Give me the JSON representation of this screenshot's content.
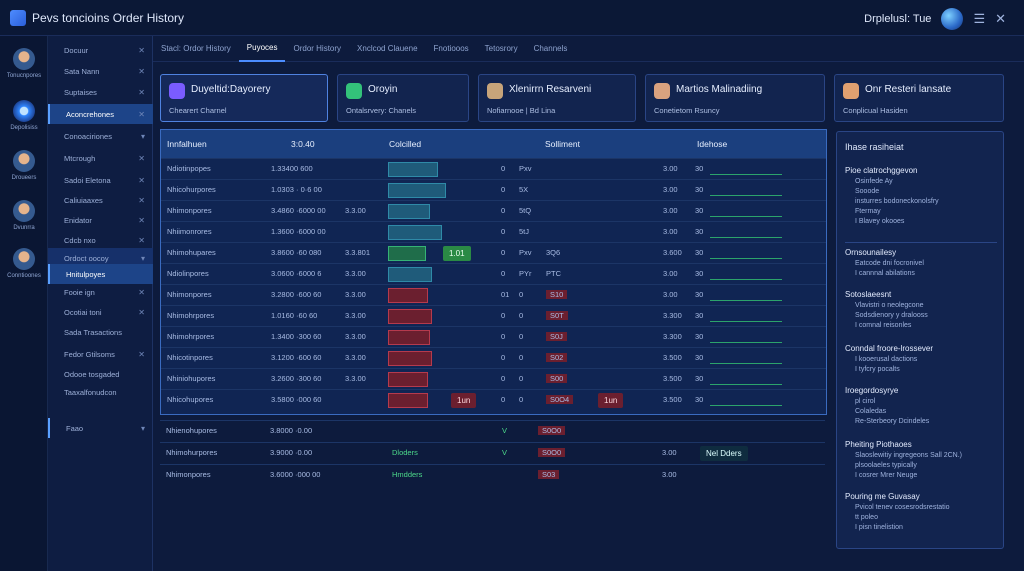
{
  "app": {
    "title": "Pevs toncioins Order History",
    "user": "Drplelusl: Tue"
  },
  "rail": [
    {
      "label": "Tonucnpores"
    },
    {
      "label": "Depolisiss"
    },
    {
      "label": "Droueers"
    },
    {
      "label": "Dvunrra"
    },
    {
      "label": "Conntioones"
    }
  ],
  "sidebar": {
    "items": [
      {
        "label": "Docuur",
        "close": "✕"
      },
      {
        "label": "Sata Nann",
        "close": "✕"
      },
      {
        "label": "Suptaises",
        "close": "✕"
      },
      {
        "label": "Aconcrehones",
        "close": "✕"
      },
      {
        "label": "Conoaciriones",
        "close": "▾"
      },
      {
        "label": "Mtcrough",
        "close": "✕"
      },
      {
        "label": "Sadoi Eletona",
        "close": "✕"
      },
      {
        "label": "Caliuiaaxes",
        "close": "✕"
      },
      {
        "label": "Enidator",
        "close": "✕"
      },
      {
        "label": "Cdcb nxo",
        "close": "✕"
      },
      {
        "label": "Ordoct oocoy",
        "close": "▾"
      },
      {
        "label": "Hnitulpoyes",
        "close": ""
      },
      {
        "label": "Fooie ign",
        "close": "✕"
      },
      {
        "label": "Ocotiai toni",
        "close": "✕"
      },
      {
        "label": "Sada Trasactions",
        "close": ""
      },
      {
        "label": "Fedor Gtilsoms",
        "close": "✕"
      },
      {
        "label": "Odooe tosgaded",
        "close": ""
      },
      {
        "label": "Taaxalfonudcon",
        "close": ""
      },
      {
        "label": "Faao",
        "close": "▾"
      }
    ]
  },
  "tabs": [
    "Stacl: Ordor History",
    "Puyoces",
    "Ordor History",
    "Xnclcod Clauene",
    "Fnotiooos",
    "Tetosrory",
    "Channels"
  ],
  "cards": [
    {
      "title": "Duyeltid:Dayorery",
      "sub": "Chearert Charnel",
      "icon_color": "#7a5cff"
    },
    {
      "title": "Oroyin",
      "sub": "Ontalsrvery: Chanels",
      "icon_color": "#33c27a"
    },
    {
      "title": "Xlenirrn Resarveni",
      "sub": "Nofiarnooe | Bd Lina",
      "icon_color": "#c7a47a"
    },
    {
      "title": "Martios Malinadiing",
      "sub": "Conetietom Rsuncy",
      "icon_color": "#d9a27f"
    },
    {
      "title": "Onr Resteri lansate",
      "sub": "Conplicual Hasiden",
      "icon_color": "#e0a070"
    }
  ],
  "table": {
    "headers": [
      "Innfalhuen",
      "3:0.40",
      "Colcilled",
      "Solliment",
      "Idehose"
    ],
    "rows": [
      {
        "name": "Ndiotinpopes",
        "amount": "1.33400 600",
        "extra": "",
        "col2": "0",
        "col3": "Pxv",
        "col4": "",
        "v1": "3.00",
        "v2": "30",
        "bar": "teal",
        "badge": "",
        "side_badge": ""
      },
      {
        "name": "Nhicohurpores",
        "amount": "1.0303 · 0·6 00",
        "extra": "",
        "col2": "0",
        "col3": "5X",
        "col4": "",
        "v1": "3.00",
        "v2": "30",
        "bar": "teal",
        "badge": "",
        "side_badge": ""
      },
      {
        "name": "Nhimonpores",
        "amount": "3.4860 ·6000 00",
        "extra": "3.3.00",
        "col2": "0",
        "col3": "5tQ",
        "col4": "",
        "v1": "3.00",
        "v2": "30",
        "bar": "teal",
        "badge": "",
        "side_badge": ""
      },
      {
        "name": "Nhiimonrores",
        "amount": "1.3600 ·6000 00",
        "extra": "",
        "col2": "0",
        "col3": "5tJ",
        "col4": "",
        "v1": "3.00",
        "v2": "30",
        "bar": "teal",
        "badge": "",
        "side_badge": ""
      },
      {
        "name": "Nhimohupares",
        "amount": "3.8600 ·60 080",
        "extra": "3.3.801",
        "col2": "0",
        "col3": "Pxv",
        "col4": "3Q6",
        "v1": "3.600",
        "v2": "30",
        "bar": "green",
        "badge": "1.01",
        "side_badge": ""
      },
      {
        "name": "Ndiolinpores",
        "amount": "3.0600 ·6000 6",
        "extra": "3.3.00",
        "col2": "0",
        "col3": "PYr",
        "col4": "PTC",
        "v1": "3.00",
        "v2": "30",
        "bar": "teal",
        "badge": "",
        "side_badge": ""
      },
      {
        "name": "Nhimonpores",
        "amount": "3.2800 ·600 60",
        "extra": "3.3.00",
        "col2": "01",
        "col3": "0",
        "col4": "S10",
        "v1": "3.00",
        "v2": "30",
        "bar": "red",
        "badge": "",
        "side_badge": ""
      },
      {
        "name": "Nhimohrpores",
        "amount": "1.0160 ·60 60",
        "extra": "3.3.00",
        "col2": "0",
        "col3": "0",
        "col4": "S0T",
        "v1": "3.300",
        "v2": "30",
        "bar": "red",
        "badge": "",
        "side_badge": ""
      },
      {
        "name": "Nhimohrpores",
        "amount": "1.3400 ·300 60",
        "extra": "3.3.00",
        "col2": "0",
        "col3": "0",
        "col4": "S0J",
        "v1": "3.300",
        "v2": "30",
        "bar": "red",
        "badge": "",
        "side_badge": ""
      },
      {
        "name": "Nhicotinpores",
        "amount": "3.1200 ·600 60",
        "extra": "3.3.00",
        "col2": "0",
        "col3": "0",
        "col4": "S02",
        "v1": "3.500",
        "v2": "30",
        "bar": "red",
        "badge": "",
        "side_badge": ""
      },
      {
        "name": "Nhiniohupores",
        "amount": "3.2600 ·300 60",
        "extra": "3.3.00",
        "col2": "0",
        "col3": "0",
        "col4": "S00",
        "v1": "3.500",
        "v2": "30",
        "bar": "red",
        "badge": "",
        "side_badge": ""
      },
      {
        "name": "Nhicohupores",
        "amount": "3.5800 ·000 60",
        "extra": "",
        "col2": "0",
        "col3": "0",
        "col4": "S0O4",
        "v1": "3.500",
        "v2": "30",
        "bar": "red",
        "badge": "1un",
        "side_badge": "1un"
      }
    ]
  },
  "lower_rows": [
    {
      "name": "Nhienohupores",
      "amount": "3.8000 ·0.00",
      "label": "",
      "check": "V",
      "code": "S0O0",
      "v": "",
      "side": ""
    },
    {
      "name": "Nhimohurpores",
      "amount": "3.9000 ·0.00",
      "label": "Dloders",
      "check": "V",
      "code": "S0O0",
      "v": "3.00",
      "side": "Nel Dders"
    },
    {
      "name": "Nhimonpores",
      "amount": "3.6000 ·000 00",
      "label": "Hmdders",
      "check": "",
      "code": "S03",
      "v": "3.00",
      "side": ""
    }
  ],
  "panel": {
    "title": "Ihase rasiheiat",
    "sections": [
      {
        "head": "Pioe clatrochggevon",
        "lines": [
          "Osinfede Ay",
          "Sooode",
          "insturres bodoneckonolsfry",
          "Ftermay",
          "I Blavey okooes"
        ]
      },
      {
        "head": "Ornsounailesy",
        "lines": [
          "Eatcode dni focronivel",
          "I cannnal abilations"
        ]
      },
      {
        "head": "Sotoslaeesnt",
        "lines": [
          "Vlavistri o neolegcone",
          "Sodsdienory y dralooss",
          "I comnal reisonles"
        ]
      },
      {
        "head": "Conndal froore-lrossever",
        "lines": [
          "I kooerusal dactions",
          "I tyfcry pocalts"
        ]
      },
      {
        "head": "Iroegordosyrye",
        "lines": [
          "pl cirol",
          "Colaledas",
          "Re-Sterbeory Dcindeles"
        ]
      },
      {
        "head": "Pheiting Piothaoes",
        "lines": [
          "Slaoslewitiy ingregeons Sall 2CN.)",
          "plsoolaeles typically",
          "I cosrer Mrer Neuge"
        ]
      },
      {
        "head": "Pouring me Guvasay",
        "lines": [
          "Pvicol tenev cosesrodsrestatio",
          "tt poleo",
          "I pisn tinelistion"
        ]
      }
    ]
  }
}
